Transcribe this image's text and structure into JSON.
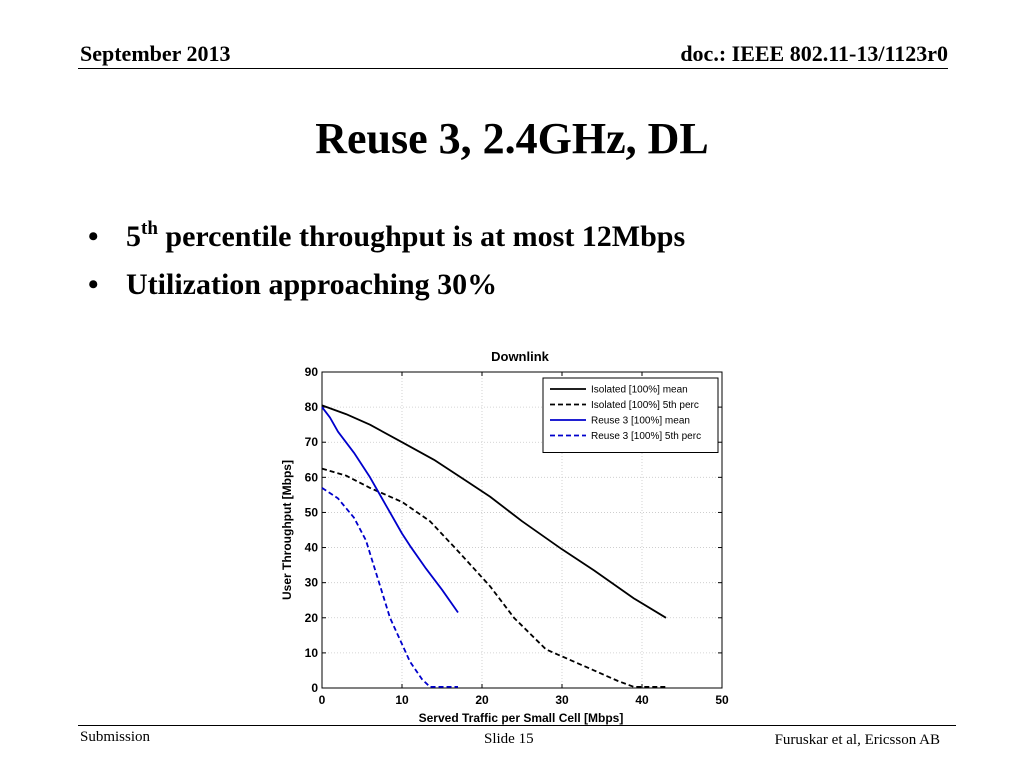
{
  "header": {
    "date": "September 2013",
    "doc_id": "doc.: IEEE 802.11-13/1123r0"
  },
  "slide_title": "Reuse 3, 2.4GHz, DL",
  "bullets": [
    {
      "prefix": "5",
      "sup": "th",
      "text": " percentile throughput is at most 12Mbps"
    },
    {
      "prefix": "",
      "sup": "",
      "text": "Utilization approaching 30%"
    }
  ],
  "footer": {
    "left": "Submission",
    "center": "Slide 15",
    "right": "Furuskar et al, Ericsson AB"
  },
  "chart_data": {
    "type": "line",
    "title": "Downlink",
    "xlabel": "Served Traffic per Small Cell [Mbps]",
    "ylabel": "User Throughput [Mbps]",
    "xlim": [
      0,
      50
    ],
    "ylim": [
      0,
      90
    ],
    "xticks": [
      0,
      10,
      20,
      30,
      40,
      50
    ],
    "yticks": [
      0,
      10,
      20,
      30,
      40,
      50,
      60,
      70,
      80,
      90
    ],
    "grid": true,
    "legend_position": "top-right",
    "series": [
      {
        "name": "Isolated [100%] mean",
        "color": "#000000",
        "dash": "solid",
        "x": [
          0,
          3,
          6,
          10,
          14,
          18,
          21,
          25,
          30,
          34,
          39,
          43
        ],
        "y": [
          80.5,
          78,
          75,
          70,
          65,
          59,
          54.5,
          47.5,
          39.5,
          33.5,
          25.5,
          20
        ]
      },
      {
        "name": "Isolated [100%] 5th perc",
        "color": "#000000",
        "dash": "dashed",
        "x": [
          0,
          3,
          6,
          10,
          13.5,
          17,
          21,
          24,
          28,
          31,
          34,
          37,
          39,
          40,
          43
        ],
        "y": [
          62.5,
          60.5,
          57,
          53,
          47.5,
          39,
          29,
          20,
          11,
          8,
          5,
          2,
          0.3,
          0.3,
          0.3
        ]
      },
      {
        "name": "Reuse 3 [100%] mean",
        "color": "#0000cc",
        "dash": "solid",
        "x": [
          0,
          1,
          2,
          4,
          6,
          8,
          10,
          11,
          13,
          15,
          17
        ],
        "y": [
          80,
          77,
          73,
          67,
          60,
          52,
          44,
          40.5,
          34,
          28,
          21.5
        ]
      },
      {
        "name": "Reuse 3 [100%] 5th perc",
        "color": "#0000cc",
        "dash": "dashed",
        "x": [
          0,
          2,
          4,
          5.5,
          7,
          8.5,
          10,
          11,
          12.5,
          13.5,
          15,
          17
        ],
        "y": [
          57,
          54,
          48.5,
          42,
          31,
          20,
          12.5,
          7.5,
          2.5,
          0.3,
          0.3,
          0.3
        ]
      }
    ]
  }
}
